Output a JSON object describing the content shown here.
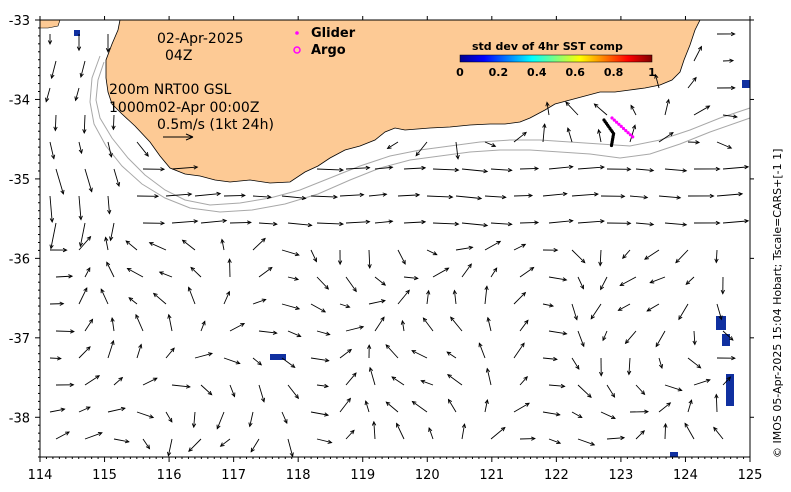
{
  "map": {
    "region": "south-west Australia coast",
    "x_ticks": [
      114,
      115,
      116,
      117,
      118,
      119,
      120,
      121,
      122,
      123,
      124,
      125
    ],
    "y_ticks": [
      -33,
      -34,
      -35,
      -36,
      -37,
      -38
    ],
    "x_range": [
      114,
      125
    ],
    "y_range": [
      -38.5,
      -33
    ]
  },
  "overlay": {
    "date": "02-Apr-2025",
    "time": "04Z",
    "depth_line_1": "200m  NRT00 GSL",
    "depth_line_2": "1000m02-Apr 00:00Z",
    "scale_label": "0.5m/s (1kt 24h)"
  },
  "legend": {
    "glider_label": "Glider",
    "argo_label": "Argo",
    "glider_color": "#ff00ff",
    "argo_color": "#ff00ff"
  },
  "colorbar": {
    "title": "std dev of 4hr SST comp",
    "ticks": [
      "0",
      "0.2",
      "0.4",
      "0.6",
      "0.8",
      "1"
    ]
  },
  "colors": {
    "land": "#fdca95",
    "coast": "#000000",
    "isobath": "#a8a8a8"
  },
  "credit": "© IMOS 05-Apr-2025 15:04 Hobart; Tscale=CARS+[-1 1]"
}
